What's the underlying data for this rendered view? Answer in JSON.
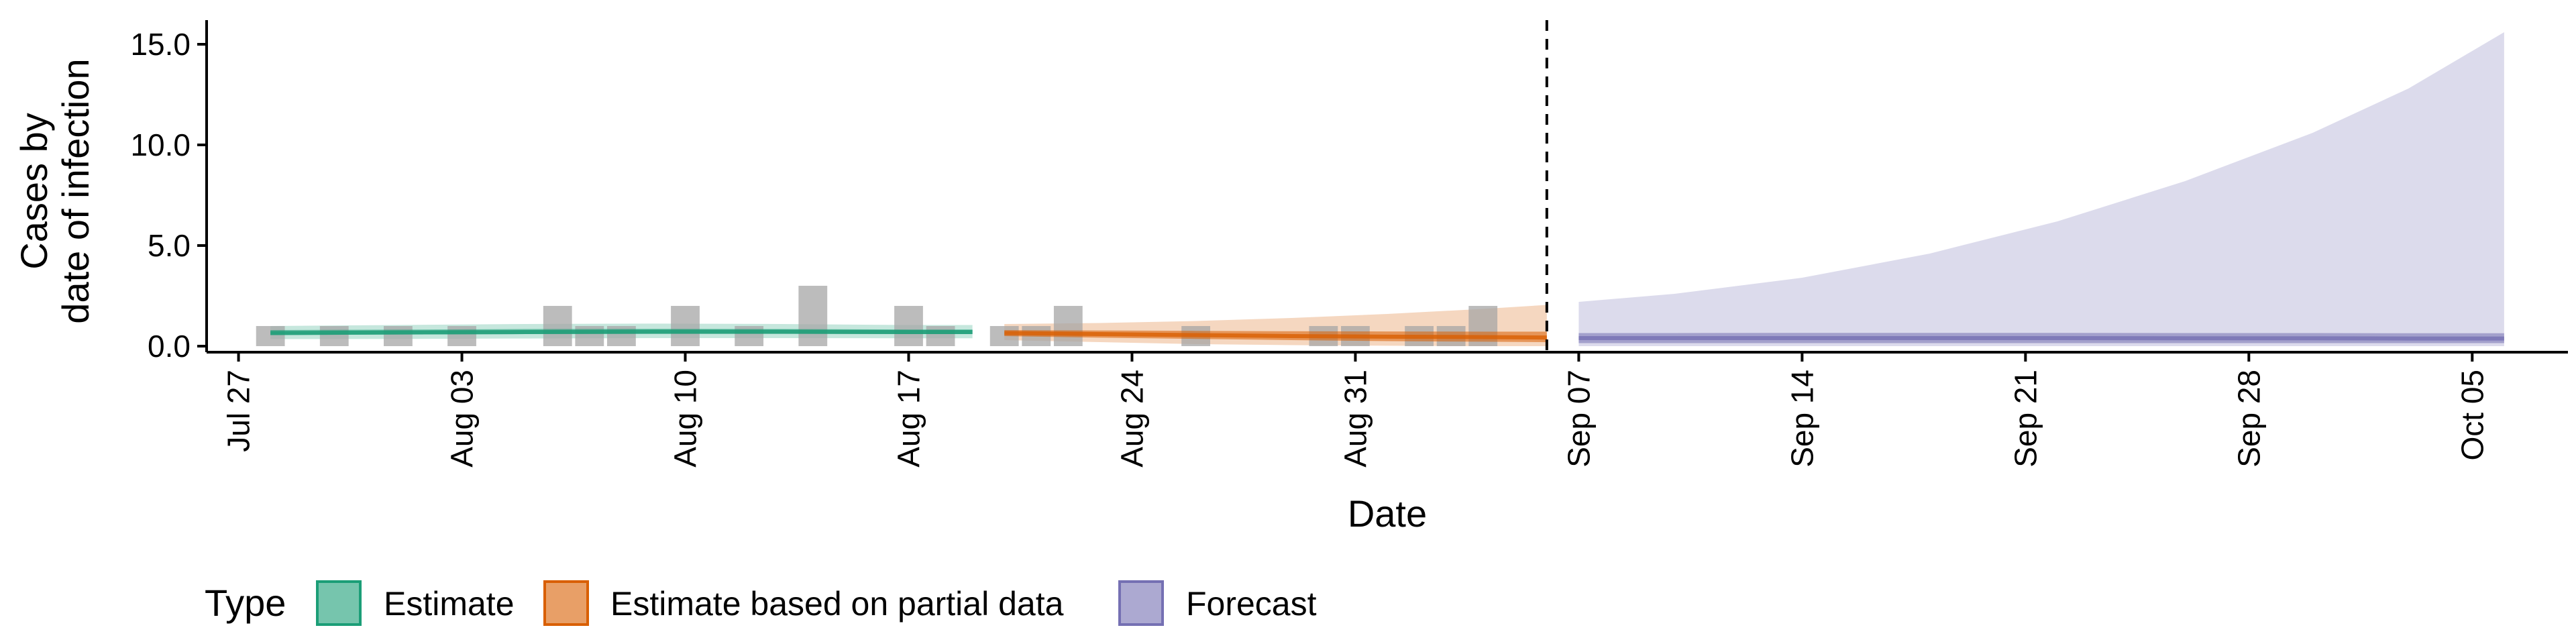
{
  "chart_data": {
    "type": "area",
    "xlabel": "Date",
    "ylabel_lines": [
      "Cases by",
      "date of infection"
    ],
    "ylim": [
      -0.3,
      16.2
    ],
    "y_ticks": [
      0,
      5,
      10,
      15
    ],
    "y_tick_labels": [
      "0.0",
      "5.0",
      "10.0",
      "15.0"
    ],
    "x_range": [
      "2020-07-26",
      "2020-10-08"
    ],
    "x_ticks": [
      "2020-07-27",
      "2020-08-03",
      "2020-08-10",
      "2020-08-17",
      "2020-08-24",
      "2020-08-31",
      "2020-09-07",
      "2020-09-14",
      "2020-09-21",
      "2020-09-28",
      "2020-10-05"
    ],
    "x_tick_labels": [
      "Jul 27",
      "Aug 03",
      "Aug 10",
      "Aug 17",
      "Aug 24",
      "Aug 31",
      "Sep 07",
      "Sep 14",
      "Sep 21",
      "Sep 28",
      "Oct 05"
    ],
    "vline_date": "2020-09-06",
    "colors": {
      "Estimate": "#1b9e77",
      "Estimate based on partial data": "#d95f02",
      "Forecast": "#7570b3",
      "reported": "#a6a6a6"
    },
    "reported_cases": {
      "dates": [
        "2020-07-28",
        "2020-07-29",
        "2020-07-30",
        "2020-07-31",
        "2020-08-01",
        "2020-08-02",
        "2020-08-03",
        "2020-08-04",
        "2020-08-05",
        "2020-08-06",
        "2020-08-07",
        "2020-08-08",
        "2020-08-09",
        "2020-08-10",
        "2020-08-11",
        "2020-08-12",
        "2020-08-13",
        "2020-08-14",
        "2020-08-15",
        "2020-08-16",
        "2020-08-17",
        "2020-08-18",
        "2020-08-19",
        "2020-08-20",
        "2020-08-21",
        "2020-08-22",
        "2020-08-23",
        "2020-08-24",
        "2020-08-25",
        "2020-08-26",
        "2020-08-27",
        "2020-08-28",
        "2020-08-29",
        "2020-08-30",
        "2020-08-31",
        "2020-09-01",
        "2020-09-02",
        "2020-09-03",
        "2020-09-04"
      ],
      "values": [
        1,
        0,
        1,
        0,
        1,
        0,
        1,
        0,
        0,
        2,
        1,
        1,
        0,
        2,
        0,
        1,
        0,
        3,
        0,
        0,
        2,
        1,
        0,
        1,
        1,
        2,
        0,
        0,
        0,
        1,
        0,
        0,
        0,
        1,
        1,
        0,
        1,
        1,
        2
      ]
    },
    "series": [
      {
        "name": "Estimate",
        "x": [
          "2020-07-28",
          "2020-08-01",
          "2020-08-05",
          "2020-08-09",
          "2020-08-13",
          "2020-08-17",
          "2020-08-19"
        ],
        "median": [
          0.65,
          0.68,
          0.7,
          0.72,
          0.72,
          0.7,
          0.7
        ],
        "lower_50": [
          0.55,
          0.58,
          0.6,
          0.61,
          0.61,
          0.6,
          0.6
        ],
        "upper_50": [
          0.8,
          0.82,
          0.85,
          0.86,
          0.85,
          0.83,
          0.83
        ],
        "lower_90": [
          0.35,
          0.36,
          0.38,
          0.4,
          0.4,
          0.39,
          0.39
        ],
        "upper_90": [
          1.0,
          1.05,
          1.1,
          1.12,
          1.1,
          1.05,
          1.05
        ]
      },
      {
        "name": "Estimate based on partial data",
        "x": [
          "2020-08-20",
          "2020-08-23",
          "2020-08-26",
          "2020-08-29",
          "2020-09-01",
          "2020-09-04",
          "2020-09-06"
        ],
        "median": [
          0.65,
          0.6,
          0.55,
          0.5,
          0.47,
          0.45,
          0.43
        ],
        "lower_50": [
          0.5,
          0.42,
          0.36,
          0.3,
          0.25,
          0.22,
          0.2
        ],
        "upper_50": [
          0.8,
          0.78,
          0.76,
          0.74,
          0.73,
          0.72,
          0.72
        ],
        "lower_90": [
          0.3,
          0.2,
          0.1,
          0.05,
          0.02,
          0.0,
          0.0
        ],
        "upper_90": [
          1.1,
          1.15,
          1.25,
          1.4,
          1.6,
          1.85,
          2.05
        ]
      },
      {
        "name": "Forecast",
        "x": [
          "2020-09-07",
          "2020-09-10",
          "2020-09-14",
          "2020-09-18",
          "2020-09-22",
          "2020-09-26",
          "2020-09-30",
          "2020-10-03",
          "2020-10-06"
        ],
        "median": [
          0.4,
          0.4,
          0.4,
          0.4,
          0.4,
          0.39,
          0.39,
          0.38,
          0.38
        ],
        "lower_50": [
          0.15,
          0.15,
          0.15,
          0.15,
          0.15,
          0.15,
          0.15,
          0.15,
          0.15
        ],
        "upper_50": [
          0.65,
          0.65,
          0.66,
          0.66,
          0.66,
          0.65,
          0.65,
          0.64,
          0.64
        ],
        "lower_90": [
          0.0,
          0.0,
          0.0,
          0.0,
          0.0,
          0.0,
          0.0,
          0.0,
          0.0
        ],
        "upper_90": [
          2.2,
          2.6,
          3.4,
          4.6,
          6.2,
          8.2,
          10.6,
          12.8,
          15.6
        ]
      }
    ],
    "legend": {
      "position": "bottom",
      "title": "Type",
      "items": [
        "Estimate",
        "Estimate based on partial data",
        "Forecast"
      ]
    }
  }
}
